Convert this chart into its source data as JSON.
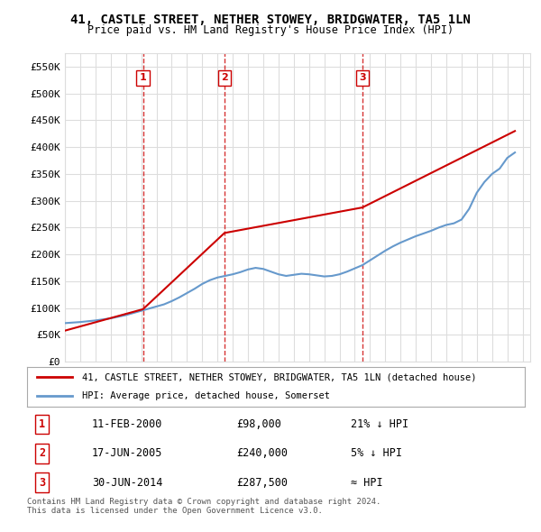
{
  "title": "41, CASTLE STREET, NETHER STOWEY, BRIDGWATER, TA5 1LN",
  "subtitle": "Price paid vs. HM Land Registry's House Price Index (HPI)",
  "legend_line1": "41, CASTLE STREET, NETHER STOWEY, BRIDGWATER, TA5 1LN (detached house)",
  "legend_line2": "HPI: Average price, detached house, Somerset",
  "sale_dates_label": [
    "11-FEB-2000",
    "17-JUN-2005",
    "30-JUN-2014"
  ],
  "sale_prices_label": [
    "£98,000",
    "£240,000",
    "£287,500"
  ],
  "sale_notes": [
    "21% ↓ HPI",
    "5% ↓ HPI",
    "≈ HPI"
  ],
  "sale_years": [
    2000.12,
    2005.46,
    2014.5
  ],
  "sale_prices": [
    98000,
    240000,
    287500
  ],
  "ylim": [
    0,
    575000
  ],
  "yticks": [
    0,
    50000,
    100000,
    150000,
    200000,
    250000,
    300000,
    350000,
    400000,
    450000,
    500000,
    550000
  ],
  "ytick_labels": [
    "£0",
    "£50K",
    "£100K",
    "£150K",
    "£200K",
    "£250K",
    "£300K",
    "£350K",
    "£400K",
    "£450K",
    "£500K",
    "£550K"
  ],
  "xlim": [
    1995,
    2025.5
  ],
  "xticks": [
    1995,
    1996,
    1997,
    1998,
    1999,
    2000,
    2001,
    2002,
    2003,
    2004,
    2005,
    2006,
    2007,
    2008,
    2009,
    2010,
    2011,
    2012,
    2013,
    2014,
    2015,
    2016,
    2017,
    2018,
    2019,
    2020,
    2021,
    2022,
    2023,
    2024,
    2025
  ],
  "hpi_years": [
    1995,
    1995.5,
    1996,
    1996.5,
    1997,
    1997.5,
    1998,
    1998.5,
    1999,
    1999.5,
    2000,
    2000.5,
    2001,
    2001.5,
    2002,
    2002.5,
    2003,
    2003.5,
    2004,
    2004.5,
    2005,
    2005.5,
    2006,
    2006.5,
    2007,
    2007.5,
    2008,
    2008.5,
    2009,
    2009.5,
    2010,
    2010.5,
    2011,
    2011.5,
    2012,
    2012.5,
    2013,
    2013.5,
    2014,
    2014.5,
    2015,
    2015.5,
    2016,
    2016.5,
    2017,
    2017.5,
    2018,
    2018.5,
    2019,
    2019.5,
    2020,
    2020.5,
    2021,
    2021.5,
    2022,
    2022.5,
    2023,
    2023.5,
    2024,
    2024.5
  ],
  "hpi_values": [
    72000,
    73000,
    74000,
    75500,
    77000,
    79000,
    81000,
    84000,
    87000,
    91000,
    95000,
    99000,
    103000,
    107000,
    113000,
    120000,
    128000,
    136000,
    145000,
    152000,
    157000,
    160000,
    163000,
    167000,
    172000,
    175000,
    173000,
    168000,
    163000,
    160000,
    162000,
    164000,
    163000,
    161000,
    159000,
    160000,
    163000,
    168000,
    174000,
    180000,
    189000,
    198000,
    207000,
    215000,
    222000,
    228000,
    234000,
    239000,
    244000,
    250000,
    255000,
    258000,
    265000,
    285000,
    315000,
    335000,
    350000,
    360000,
    380000,
    390000
  ],
  "red_line_years": [
    1995,
    2000.12,
    2005.46,
    2014.5,
    2024.5
  ],
  "red_line_values": [
    58000,
    98000,
    240000,
    287500,
    430000
  ],
  "red_color": "#cc0000",
  "blue_color": "#6699cc",
  "bg_color": "#ffffff",
  "grid_color": "#dddddd",
  "footer_text": "Contains HM Land Registry data © Crown copyright and database right 2024.\nThis data is licensed under the Open Government Licence v3.0."
}
